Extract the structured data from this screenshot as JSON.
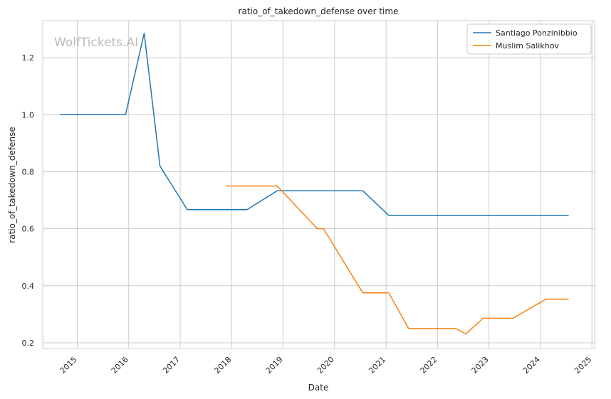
{
  "chart_data": {
    "type": "line",
    "title": "ratio_of_takedown_defense over time",
    "xlabel": "Date",
    "ylabel": "ratio_of_takedown_defense",
    "watermark": "WolfTickets.AI",
    "xlim": [
      "2014-05-01",
      "2025-01-20"
    ],
    "ylim": [
      0.18,
      1.33
    ],
    "x_ticks": [
      "2015",
      "2016",
      "2017",
      "2018",
      "2019",
      "2020",
      "2021",
      "2022",
      "2023",
      "2024",
      "2025"
    ],
    "y_ticks": [
      "0.2",
      "0.4",
      "0.6",
      "0.8",
      "1.0",
      "1.2"
    ],
    "grid": true,
    "legend_position": "top-right",
    "series": [
      {
        "name": "Santiago Ponzinibbio",
        "color": "#1f77b4",
        "points": [
          [
            "2014-09-01",
            1.0
          ],
          [
            "2015-12-10",
            1.0
          ],
          [
            "2016-04-20",
            1.286
          ],
          [
            "2016-08-10",
            0.82
          ],
          [
            "2017-02-20",
            0.667
          ],
          [
            "2018-04-20",
            0.667
          ],
          [
            "2018-11-20",
            0.733
          ],
          [
            "2020-07-20",
            0.733
          ],
          [
            "2021-01-20",
            0.647
          ],
          [
            "2024-07-20",
            0.647
          ]
        ]
      },
      {
        "name": "Muslim Salikhov",
        "color": "#ff7f0e",
        "points": [
          [
            "2017-11-20",
            0.75
          ],
          [
            "2018-11-20",
            0.75
          ],
          [
            "2019-09-01",
            0.6
          ],
          [
            "2019-10-15",
            0.6
          ],
          [
            "2020-07-20",
            0.375
          ],
          [
            "2021-01-20",
            0.375
          ],
          [
            "2021-06-10",
            0.25
          ],
          [
            "2022-05-10",
            0.25
          ],
          [
            "2022-07-20",
            0.231
          ],
          [
            "2022-11-20",
            0.286
          ],
          [
            "2023-06-20",
            0.286
          ],
          [
            "2024-02-10",
            0.353
          ],
          [
            "2024-07-20",
            0.353
          ]
        ]
      }
    ]
  }
}
